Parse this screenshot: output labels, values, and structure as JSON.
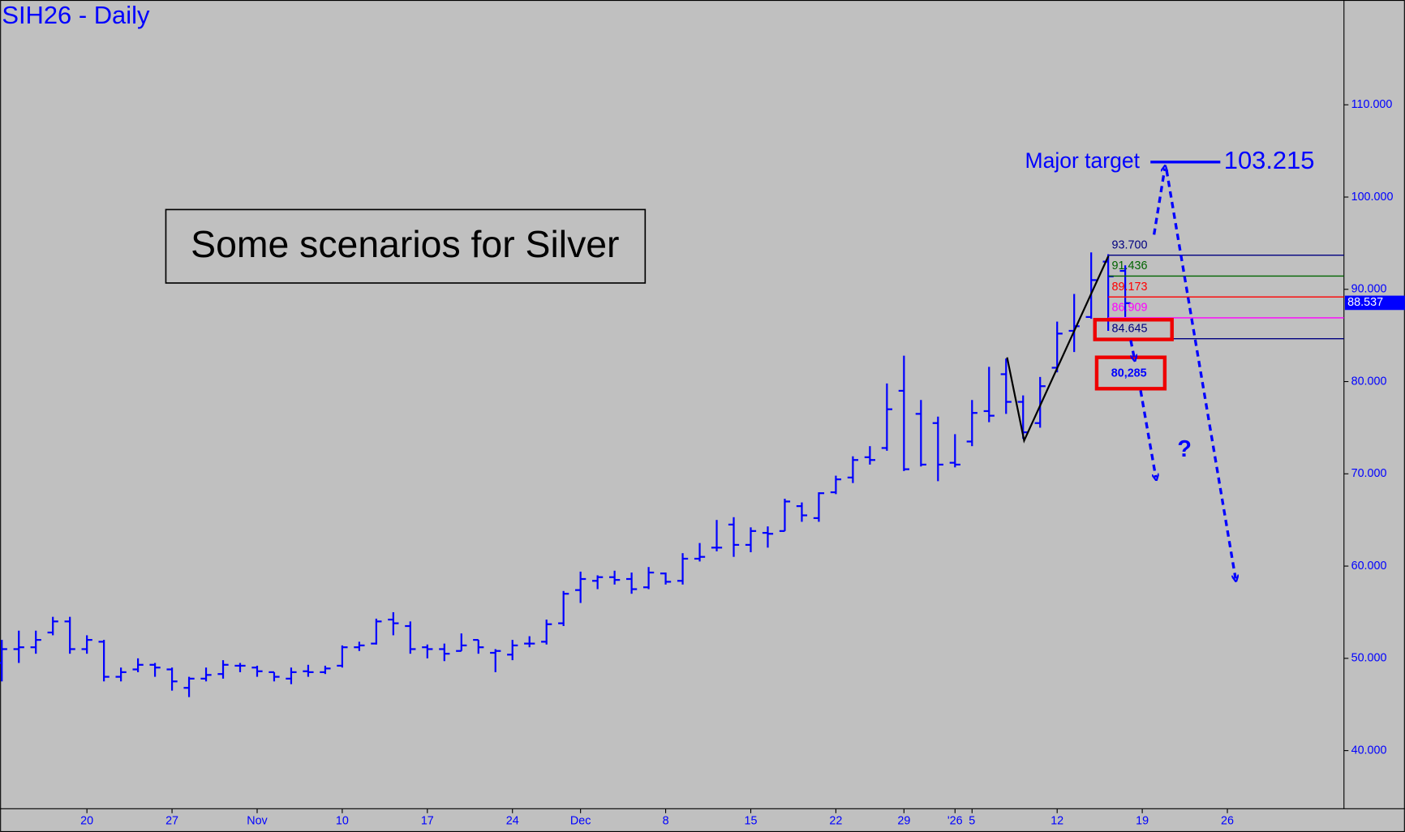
{
  "chart_data": {
    "type": "ohlc",
    "title": "SIH26 - Daily",
    "color": "#0000ff",
    "x": [
      0,
      1,
      2,
      3,
      4,
      5,
      6,
      7,
      8,
      9,
      10,
      11,
      12,
      13,
      14,
      15,
      16,
      17,
      18,
      19,
      20,
      21,
      22,
      23,
      24,
      25,
      26,
      27,
      28,
      29,
      30,
      31,
      32,
      33,
      34,
      35,
      36,
      37,
      38,
      39,
      40,
      41,
      42,
      43,
      44,
      45,
      46,
      47,
      48,
      49,
      50,
      51,
      52,
      53,
      54,
      55,
      56,
      57,
      58,
      59,
      60,
      61,
      62,
      63,
      64,
      65,
      66
    ],
    "open": [
      49.5,
      51,
      51.2,
      52.8,
      54,
      51,
      51.8,
      48,
      48.8,
      49.3,
      48.8,
      46.8,
      47.8,
      48.3,
      49.2,
      49,
      48.5,
      47.8,
      48.6,
      48.5,
      49.2,
      51.2,
      51.6,
      54.2,
      53.5,
      51.2,
      51,
      50.8,
      52,
      50.6,
      50.4,
      51.6,
      51.8,
      53.8,
      57.4,
      58.4,
      58.8,
      58.6,
      57.7,
      59.2,
      58.4,
      60.8,
      62,
      64.5,
      62.3,
      63.6,
      63.8,
      66.5,
      65.2,
      68,
      69.6,
      71.8,
      72.8,
      79,
      76.5,
      75.5,
      71.2,
      73.5,
      76.8,
      80.8,
      77.8,
      75.5,
      81.5,
      85.5,
      87,
      93,
      92
    ],
    "high": [
      52,
      53,
      53,
      54.5,
      54.5,
      52.5,
      52,
      49,
      50,
      49.5,
      49,
      48,
      49,
      49.8,
      49.5,
      49.2,
      48.5,
      49,
      49.3,
      49.2,
      51.4,
      51.8,
      54.3,
      55,
      54,
      51.5,
      51.6,
      52.7,
      52,
      51,
      52,
      52.4,
      54.2,
      57.3,
      59.4,
      59,
      59.5,
      59.3,
      59.9,
      59.3,
      61.4,
      62.5,
      65,
      65.3,
      64.2,
      64.3,
      67.3,
      66.9,
      68,
      69.8,
      71.9,
      73,
      79.8,
      82.8,
      78,
      76.2,
      74.3,
      78,
      81.6,
      82.5,
      78.5,
      80.5,
      86.5,
      89.5,
      94,
      93.8,
      92.6
    ],
    "low": [
      47.5,
      49.5,
      50.5,
      52.5,
      50.5,
      50.5,
      47.5,
      47.5,
      48.5,
      48,
      46.5,
      45.8,
      47.5,
      47.8,
      48.5,
      48,
      47.5,
      47.2,
      48,
      48.3,
      49,
      50.8,
      51.5,
      52.5,
      50.5,
      50,
      49.7,
      50.8,
      50.5,
      48.5,
      49.8,
      51.2,
      51.5,
      53.5,
      56,
      57.5,
      58,
      57,
      57.5,
      58,
      58,
      60.5,
      61.6,
      61,
      61.5,
      62,
      63.8,
      64.8,
      64.8,
      67.8,
      69,
      71,
      72.5,
      70.3,
      70.8,
      69.2,
      70.7,
      73,
      75.6,
      76.5,
      73.8,
      75,
      81,
      83.2,
      86.8,
      85.5,
      87
    ],
    "close": [
      51,
      51.2,
      52,
      54,
      51,
      52,
      48,
      48.5,
      49.3,
      49,
      47.5,
      47.8,
      48.2,
      49.3,
      49.2,
      48.6,
      48,
      48.5,
      48.5,
      48.9,
      51.2,
      51.4,
      54,
      53.8,
      51,
      51,
      50.5,
      51.4,
      51.2,
      50.8,
      51.4,
      51.6,
      53.7,
      57,
      58.6,
      58.8,
      58.5,
      57.5,
      59.3,
      58.3,
      60.8,
      61,
      62,
      62.3,
      63.8,
      63.5,
      67,
      65.5,
      67.9,
      69.4,
      71.5,
      71.5,
      77,
      70.5,
      71,
      71,
      71,
      76.6,
      76.3,
      77.8,
      74.5,
      79.5,
      85.2,
      86,
      91,
      91.4,
      88.5
    ],
    "xlim": [
      -0.1,
      78.85
    ],
    "xticks": [
      {
        "value": 5,
        "label": "20"
      },
      {
        "value": 10,
        "label": "27"
      },
      {
        "value": 15,
        "label": "Nov"
      },
      {
        "value": 20,
        "label": "10"
      },
      {
        "value": 25,
        "label": "17"
      },
      {
        "value": 30,
        "label": "24"
      },
      {
        "value": 34,
        "label": "Dec"
      },
      {
        "value": 39,
        "label": "8"
      },
      {
        "value": 44,
        "label": "15"
      },
      {
        "value": 49,
        "label": "22"
      },
      {
        "value": 53,
        "label": "29"
      },
      {
        "value": 56,
        "label": "'26"
      },
      {
        "value": 57,
        "label": "5"
      },
      {
        "value": 62,
        "label": "12"
      },
      {
        "value": 67,
        "label": "19"
      },
      {
        "value": 72,
        "label": "26"
      }
    ],
    "ylim": [
      33.7,
      121.36
    ],
    "yticks": [
      {
        "value": 40,
        "label": "40.000"
      },
      {
        "value": 50,
        "label": "50.000"
      },
      {
        "value": 60,
        "label": "60.000"
      },
      {
        "value": 70,
        "label": "70.000"
      },
      {
        "value": 80,
        "label": "80.000"
      },
      {
        "value": 90,
        "label": "90.000"
      },
      {
        "value": 100,
        "label": "100.000"
      },
      {
        "value": 110,
        "label": "110.000"
      }
    ],
    "levels": [
      {
        "value": 93.7,
        "label": "93.700",
        "color": "#000080"
      },
      {
        "value": 91.436,
        "label": "91.436",
        "color": "#006400"
      },
      {
        "value": 89.173,
        "label": "89.173",
        "color": "#ff0000"
      },
      {
        "value": 86.909,
        "label": "86.909",
        "color": "#ff00ff"
      },
      {
        "value": 84.645,
        "label": "84.645",
        "color": "#000080"
      }
    ],
    "last_price": 88.537,
    "scenario_text": "Some scenarios for Silver",
    "target_text": "Major target",
    "target_value": 103.215,
    "alt_target": "80,285",
    "question": "?"
  }
}
